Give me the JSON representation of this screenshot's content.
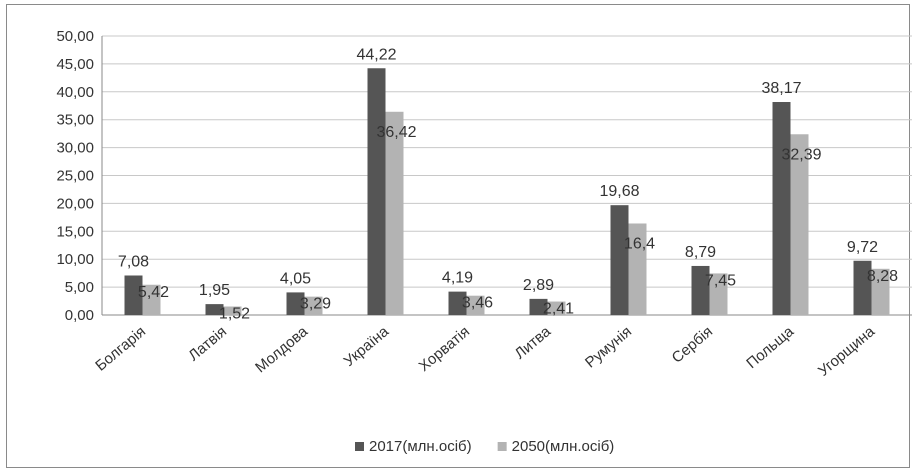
{
  "chart_data": {
    "type": "bar",
    "title": "",
    "xlabel": "",
    "ylabel": "",
    "ylim": [
      0,
      50
    ],
    "ytick_step": 5,
    "grid": true,
    "legend_position": "bottom",
    "categories": [
      "Болгарія",
      "Латвія",
      "Молдова",
      "Україна",
      "Хорватія",
      "Литва",
      "Румунія",
      "Сербія",
      "Польща",
      "Угорщина"
    ],
    "series": [
      {
        "name": "2017(млн.осіб)",
        "color": "#555555",
        "values": [
          7.08,
          1.95,
          4.05,
          44.22,
          4.19,
          2.89,
          19.68,
          8.79,
          38.17,
          9.72
        ],
        "labels": [
          "7,08",
          "1,95",
          "4,05",
          "44,22",
          "4,19",
          "2,89",
          "19,68",
          "8,79",
          "38,17",
          "9,72"
        ]
      },
      {
        "name": "2050(млн.осіб)",
        "color": "#b3b3b3",
        "values": [
          5.42,
          1.52,
          3.29,
          36.42,
          3.46,
          2.41,
          16.4,
          7.45,
          32.39,
          8.28
        ],
        "labels": [
          "5,42",
          "1,52",
          "3,29",
          "36,42",
          "3,46",
          "2,41",
          "16,4",
          "7,45",
          "32,39",
          "8,28"
        ]
      }
    ]
  }
}
